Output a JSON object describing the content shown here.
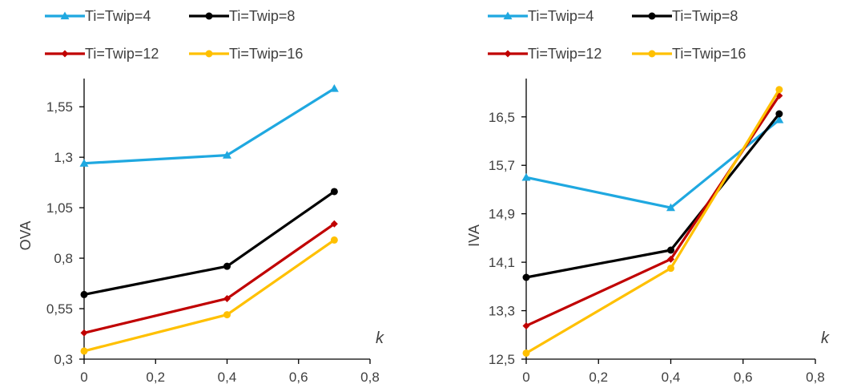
{
  "chart_data": [
    {
      "type": "line",
      "title": "",
      "xlabel": "k",
      "ylabel": "OVA",
      "xlim": [
        0,
        0.8
      ],
      "ylim": [
        0.3,
        1.65
      ],
      "x_ticks": [
        "0",
        "0,2",
        "0,4",
        "0,6",
        "0,8"
      ],
      "y_ticks": [
        "0,3",
        "0,55",
        "0,8",
        "1,05",
        "1,3",
        "1,55"
      ],
      "legend_position": "top",
      "x": [
        0,
        0.4,
        0.7
      ],
      "series": [
        {
          "name": "Ti=Twip=4",
          "values": [
            1.27,
            1.31,
            1.64
          ],
          "color": "#1FA8E0",
          "marker": "triangle"
        },
        {
          "name": "Ti=Twip=8",
          "values": [
            0.62,
            0.76,
            1.13
          ],
          "color": "#000000",
          "marker": "circle"
        },
        {
          "name": "Ti=Twip=12",
          "values": [
            0.43,
            0.6,
            0.97
          ],
          "color": "#C00000",
          "marker": "diamond"
        },
        {
          "name": "Ti=Twip=16",
          "values": [
            0.34,
            0.52,
            0.89
          ],
          "color": "#FFC000",
          "marker": "circle"
        }
      ]
    },
    {
      "type": "line",
      "title": "",
      "xlabel": "k",
      "ylabel": "IVA",
      "xlim": [
        0,
        0.8
      ],
      "ylim": [
        12.5,
        17.0
      ],
      "x_ticks": [
        "0",
        "0,2",
        "0,4",
        "0,6",
        "0,8"
      ],
      "y_ticks": [
        "12,5",
        "13,3",
        "14,1",
        "14,9",
        "15,7",
        "16,5"
      ],
      "legend_position": "top",
      "x": [
        0,
        0.4,
        0.7
      ],
      "series": [
        {
          "name": "Ti=Twip=4",
          "values": [
            15.5,
            15.0,
            16.45
          ],
          "color": "#1FA8E0",
          "marker": "triangle"
        },
        {
          "name": "Ti=Twip=8",
          "values": [
            13.85,
            14.3,
            16.55
          ],
          "color": "#000000",
          "marker": "circle"
        },
        {
          "name": "Ti=Twip=12",
          "values": [
            13.05,
            14.15,
            16.85
          ],
          "color": "#C00000",
          "marker": "diamond"
        },
        {
          "name": "Ti=Twip=16",
          "values": [
            12.6,
            14.0,
            16.95
          ],
          "color": "#FFC000",
          "marker": "circle"
        }
      ]
    }
  ]
}
